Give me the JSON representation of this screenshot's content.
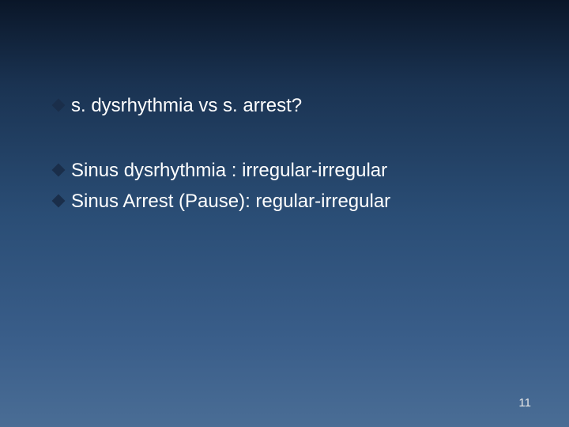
{
  "slide": {
    "bullets": [
      {
        "text": "s. dysrhythmia vs s. arrest?"
      },
      {
        "text": "Sinus dysrhythmia : irregular-irregular"
      },
      {
        "text": "Sinus Arrest (Pause): regular-irregular"
      }
    ],
    "page_number": "11",
    "background_gradient": {
      "top": "#0a1628",
      "bottom": "#4a6d95"
    },
    "bullet_color": "#1a2e4a",
    "text_color": "#ffffff",
    "font_size_pt": 18,
    "page_number_color": "#e8e8e8"
  }
}
